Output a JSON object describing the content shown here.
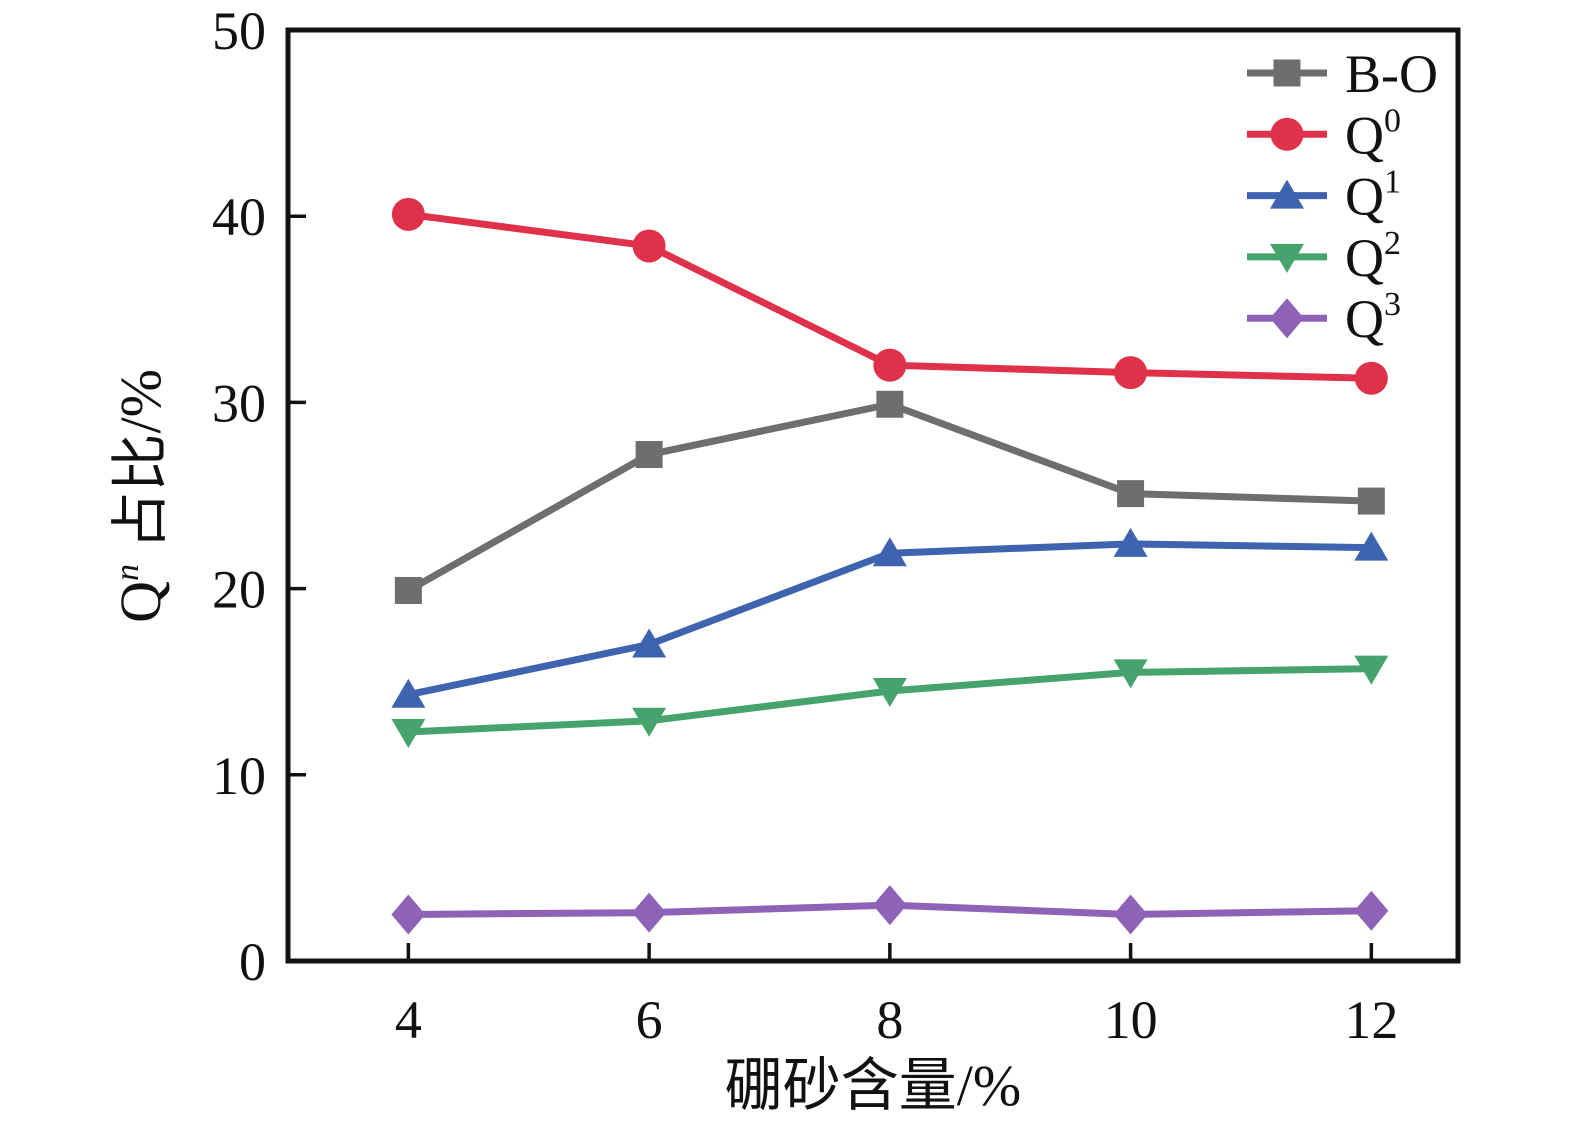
{
  "figure": {
    "background": "#ffffff",
    "axis_color": "#111111",
    "text_color": "#111111"
  },
  "chart_data": {
    "type": "line",
    "title": "",
    "xlabel": "硼砂含量/%",
    "ylabel_plain": "Qⁿ 占比/%",
    "ylabel_parts": [
      {
        "t": "Q",
        "sup": false,
        "italic": false
      },
      {
        "t": "n",
        "sup": true,
        "italic": true
      },
      {
        "t": " 占比/%",
        "sup": false,
        "italic": false
      }
    ],
    "x": [
      4,
      6,
      8,
      10,
      12
    ],
    "xticks": [
      4,
      6,
      8,
      10,
      12
    ],
    "yticks": [
      0,
      10,
      20,
      30,
      40,
      50
    ],
    "xlim": [
      3.0,
      12.72
    ],
    "ylim": [
      0,
      50
    ],
    "grid": false,
    "legend_position": "top-right-inside",
    "series": [
      {
        "name": "B-O",
        "label_base": "B-O",
        "label_sup": "",
        "color": "#6e6e6e",
        "marker": "square",
        "values": [
          19.9,
          27.2,
          29.9,
          25.1,
          24.7
        ]
      },
      {
        "name": "Q0",
        "label_base": "Q",
        "label_sup": "0",
        "color": "#e0314a",
        "marker": "circle",
        "values": [
          40.1,
          38.4,
          32.0,
          31.6,
          31.3
        ]
      },
      {
        "name": "Q1",
        "label_base": "Q",
        "label_sup": "1",
        "color": "#3e63af",
        "marker": "triangle-up",
        "values": [
          14.3,
          17.0,
          21.9,
          22.4,
          22.2
        ]
      },
      {
        "name": "Q2",
        "label_base": "Q",
        "label_sup": "2",
        "color": "#46a36e",
        "marker": "triangle-down",
        "values": [
          12.3,
          12.9,
          14.5,
          15.5,
          15.7
        ]
      },
      {
        "name": "Q3",
        "label_base": "Q",
        "label_sup": "3",
        "color": "#8e62b7",
        "marker": "diamond",
        "values": [
          2.5,
          2.6,
          3.0,
          2.5,
          2.7
        ]
      }
    ]
  }
}
